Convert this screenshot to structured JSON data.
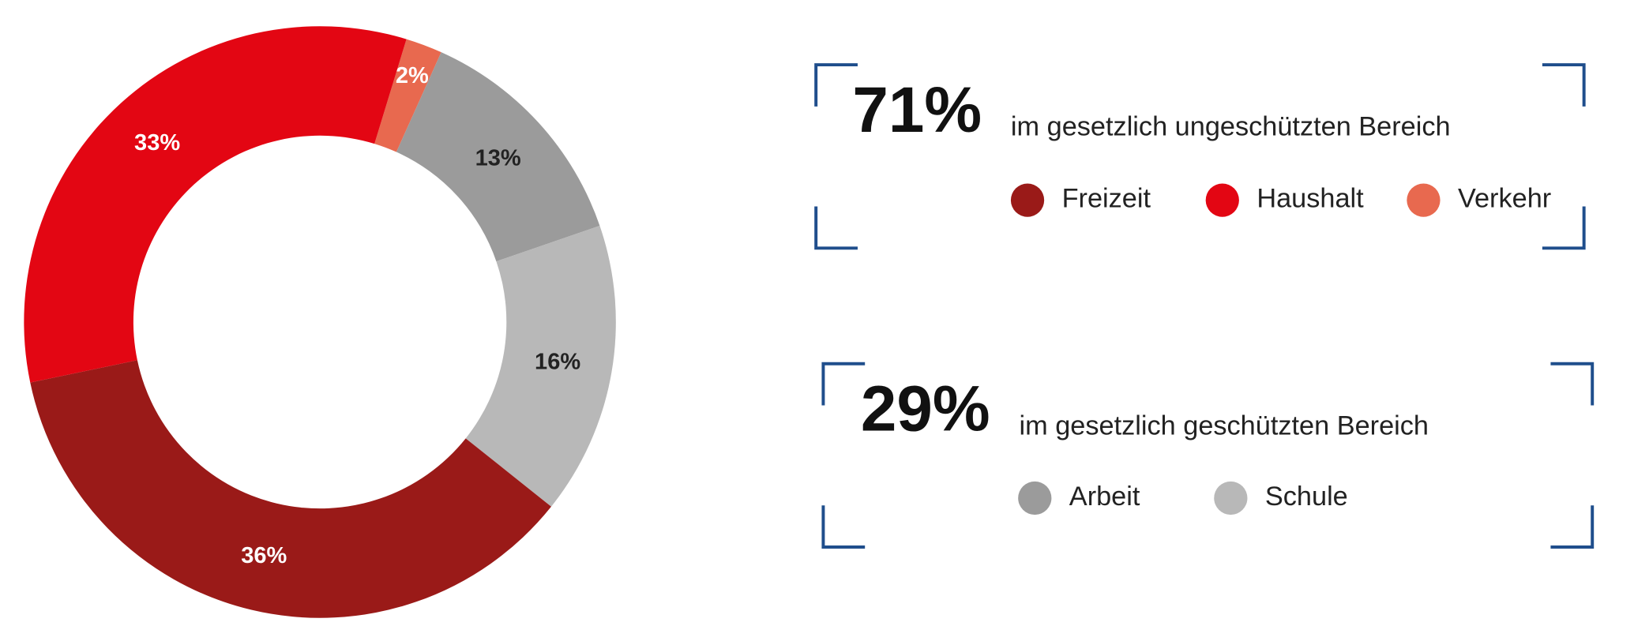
{
  "chart_data": {
    "type": "pie",
    "donut": true,
    "start_angle": 17,
    "categories": [
      "Verkehr",
      "Arbeit",
      "Schule",
      "Freizeit",
      "Haushalt"
    ],
    "values": [
      2,
      13,
      16,
      36,
      33
    ],
    "value_labels": [
      "2%",
      "13%",
      "16%",
      "36%",
      "33%"
    ],
    "colors": [
      "#e8694f",
      "#9b9b9b",
      "#b8b8b8",
      "#9a1a18",
      "#e30613"
    ],
    "label_colors": [
      "#ffffff",
      "#222222",
      "#222222",
      "#ffffff",
      "#ffffff"
    ],
    "legend_groups": [
      {
        "total": "71%",
        "text": "im gesetzlich ungeschützten Bereich"
      },
      {
        "total": "29%",
        "text": "im gesetzlich geschützten Bereich"
      }
    ]
  }
}
